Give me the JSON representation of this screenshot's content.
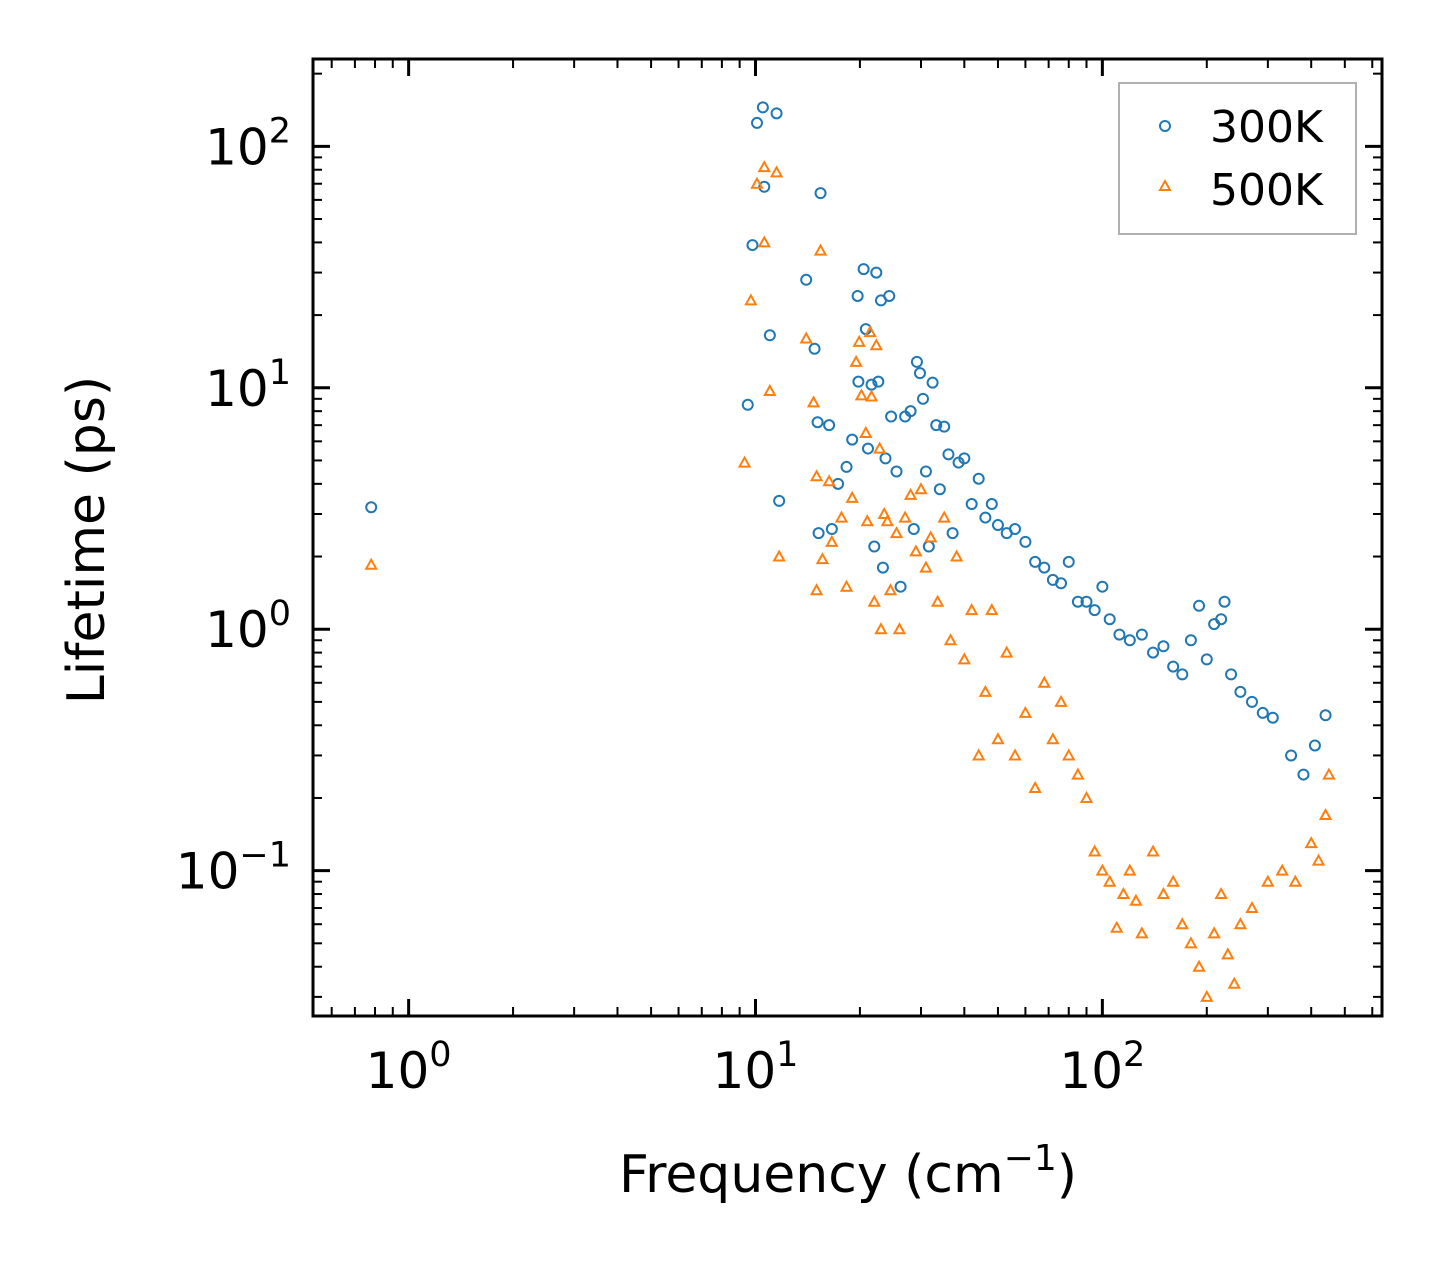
{
  "chart_data": {
    "type": "scatter",
    "title": "",
    "xlabel": "Frequency",
    "xlabel_unit_base": "(cm",
    "xlabel_unit_exp": "−1",
    "xlabel_unit_close": ")",
    "ylabel": "Lifetime (ps)",
    "xscale": "log",
    "yscale": "log",
    "xlim": [
      0.53,
      640
    ],
    "ylim": [
      0.025,
      230
    ],
    "grid": false,
    "legend_position": "top-right",
    "x_ticks": [
      {
        "value": 1,
        "base": "10",
        "exp": "0"
      },
      {
        "value": 10,
        "base": "10",
        "exp": "1"
      },
      {
        "value": 100,
        "base": "10",
        "exp": "2"
      }
    ],
    "y_ticks": [
      {
        "value": 0.1,
        "base": "10",
        "exp": "−1"
      },
      {
        "value": 1,
        "base": "10",
        "exp": "0"
      },
      {
        "value": 10,
        "base": "10",
        "exp": "1"
      },
      {
        "value": 100,
        "base": "10",
        "exp": "2"
      }
    ],
    "series": [
      {
        "name": "300K",
        "marker": "circle",
        "color": "#1f77b4",
        "points": [
          [
            0.78,
            3.2
          ],
          [
            9.5,
            8.5
          ],
          [
            9.8,
            39
          ],
          [
            10.1,
            125
          ],
          [
            10.5,
            145
          ],
          [
            10.6,
            68
          ],
          [
            11.0,
            16.5
          ],
          [
            11.5,
            137
          ],
          [
            11.7,
            3.4
          ],
          [
            14.0,
            28
          ],
          [
            14.8,
            14.5
          ],
          [
            15.1,
            7.2
          ],
          [
            15.2,
            2.5
          ],
          [
            15.4,
            64
          ],
          [
            16.3,
            7.0
          ],
          [
            16.6,
            2.6
          ],
          [
            17.3,
            4.0
          ],
          [
            18.3,
            4.7
          ],
          [
            19.0,
            6.1
          ],
          [
            19.7,
            24
          ],
          [
            19.8,
            10.6
          ],
          [
            20.5,
            31
          ],
          [
            20.8,
            17.5
          ],
          [
            21.1,
            5.6
          ],
          [
            21.6,
            10.3
          ],
          [
            22.0,
            2.2
          ],
          [
            22.3,
            30
          ],
          [
            22.6,
            10.6
          ],
          [
            23.0,
            23
          ],
          [
            23.3,
            1.8
          ],
          [
            23.7,
            5.1
          ],
          [
            24.3,
            24
          ],
          [
            24.6,
            7.6
          ],
          [
            25.5,
            4.5
          ],
          [
            26.2,
            1.5
          ],
          [
            27.0,
            7.6
          ],
          [
            28.0,
            8.0
          ],
          [
            28.6,
            2.6
          ],
          [
            29.2,
            12.8
          ],
          [
            29.8,
            11.5
          ],
          [
            30.4,
            9.0
          ],
          [
            31.0,
            4.5
          ],
          [
            31.6,
            2.2
          ],
          [
            32.4,
            10.5
          ],
          [
            33.2,
            7.0
          ],
          [
            34.0,
            3.8
          ],
          [
            35.0,
            6.9
          ],
          [
            36.0,
            5.3
          ],
          [
            37.0,
            2.5
          ],
          [
            38.5,
            4.9
          ],
          [
            40.0,
            5.1
          ],
          [
            42.0,
            3.3
          ],
          [
            44.0,
            4.2
          ],
          [
            46.0,
            2.9
          ],
          [
            48.0,
            3.3
          ],
          [
            50.0,
            2.7
          ],
          [
            53.0,
            2.5
          ],
          [
            56.0,
            2.6
          ],
          [
            60.0,
            2.3
          ],
          [
            64.0,
            1.9
          ],
          [
            68.0,
            1.8
          ],
          [
            72.0,
            1.6
          ],
          [
            76.0,
            1.55
          ],
          [
            80.0,
            1.9
          ],
          [
            85.0,
            1.3
          ],
          [
            90.0,
            1.3
          ],
          [
            95.0,
            1.2
          ],
          [
            100.0,
            1.5
          ],
          [
            105.0,
            1.1
          ],
          [
            112.0,
            0.95
          ],
          [
            120.0,
            0.9
          ],
          [
            130.0,
            0.95
          ],
          [
            140.0,
            0.8
          ],
          [
            150.0,
            0.85
          ],
          [
            160.0,
            0.7
          ],
          [
            170.0,
            0.65
          ],
          [
            180.0,
            0.9
          ],
          [
            190.0,
            1.25
          ],
          [
            200.0,
            0.75
          ],
          [
            210.0,
            1.05
          ],
          [
            220.0,
            1.1
          ],
          [
            225.0,
            1.3
          ],
          [
            235.0,
            0.65
          ],
          [
            250.0,
            0.55
          ],
          [
            270.0,
            0.5
          ],
          [
            290.0,
            0.45
          ],
          [
            310.0,
            0.43
          ],
          [
            350.0,
            0.3
          ],
          [
            380.0,
            0.25
          ],
          [
            410.0,
            0.33
          ],
          [
            440.0,
            0.44
          ]
        ]
      },
      {
        "name": "500K",
        "marker": "triangle",
        "color": "#ff7f0e",
        "points": [
          [
            0.78,
            1.85
          ],
          [
            9.3,
            4.9
          ],
          [
            9.7,
            23
          ],
          [
            10.1,
            70
          ],
          [
            10.6,
            40
          ],
          [
            10.6,
            82
          ],
          [
            11.0,
            9.7
          ],
          [
            11.5,
            78
          ],
          [
            11.7,
            2.0
          ],
          [
            14.0,
            16
          ],
          [
            14.7,
            8.7
          ],
          [
            15.0,
            4.3
          ],
          [
            15.0,
            1.45
          ],
          [
            15.4,
            37
          ],
          [
            15.6,
            1.95
          ],
          [
            16.3,
            4.1
          ],
          [
            16.6,
            2.3
          ],
          [
            17.7,
            2.9
          ],
          [
            18.3,
            1.5
          ],
          [
            19.0,
            3.5
          ],
          [
            19.5,
            12.8
          ],
          [
            19.9,
            15.5
          ],
          [
            20.2,
            9.3
          ],
          [
            20.8,
            6.5
          ],
          [
            21.0,
            2.8
          ],
          [
            21.4,
            17
          ],
          [
            21.6,
            9.2
          ],
          [
            22.0,
            1.3
          ],
          [
            22.3,
            15
          ],
          [
            22.8,
            5.6
          ],
          [
            23.0,
            1.0
          ],
          [
            23.5,
            3.0
          ],
          [
            24.0,
            2.8
          ],
          [
            24.5,
            1.45
          ],
          [
            25.5,
            2.5
          ],
          [
            26.0,
            1.0
          ],
          [
            27.0,
            2.9
          ],
          [
            28.0,
            3.6
          ],
          [
            29.0,
            2.1
          ],
          [
            30.0,
            3.8
          ],
          [
            31.0,
            1.8
          ],
          [
            32.0,
            2.4
          ],
          [
            33.5,
            1.3
          ],
          [
            35.0,
            2.9
          ],
          [
            36.5,
            0.9
          ],
          [
            38.0,
            2.0
          ],
          [
            40.0,
            0.75
          ],
          [
            42.0,
            1.2
          ],
          [
            44.0,
            0.3
          ],
          [
            46.0,
            0.55
          ],
          [
            48.0,
            1.2
          ],
          [
            50.0,
            0.35
          ],
          [
            53.0,
            0.8
          ],
          [
            56.0,
            0.3
          ],
          [
            60.0,
            0.45
          ],
          [
            64.0,
            0.22
          ],
          [
            68.0,
            0.6
          ],
          [
            72.0,
            0.35
          ],
          [
            76.0,
            0.5
          ],
          [
            80.0,
            0.3
          ],
          [
            85.0,
            0.25
          ],
          [
            90.0,
            0.2
          ],
          [
            95.0,
            0.12
          ],
          [
            100.0,
            0.1
          ],
          [
            105.0,
            0.09
          ],
          [
            110.0,
            0.058
          ],
          [
            115.0,
            0.08
          ],
          [
            120.0,
            0.1
          ],
          [
            125.0,
            0.075
          ],
          [
            130.0,
            0.055
          ],
          [
            140.0,
            0.12
          ],
          [
            150.0,
            0.08
          ],
          [
            160.0,
            0.09
          ],
          [
            170.0,
            0.06
          ],
          [
            180.0,
            0.05
          ],
          [
            190.0,
            0.04
          ],
          [
            200.0,
            0.03
          ],
          [
            210.0,
            0.055
          ],
          [
            220.0,
            0.08
          ],
          [
            230.0,
            0.045
          ],
          [
            240.0,
            0.034
          ],
          [
            250.0,
            0.06
          ],
          [
            270.0,
            0.07
          ],
          [
            300.0,
            0.09
          ],
          [
            330.0,
            0.1
          ],
          [
            360.0,
            0.09
          ],
          [
            400.0,
            0.13
          ],
          [
            420.0,
            0.11
          ],
          [
            440.0,
            0.17
          ],
          [
            450.0,
            0.25
          ]
        ]
      }
    ]
  }
}
